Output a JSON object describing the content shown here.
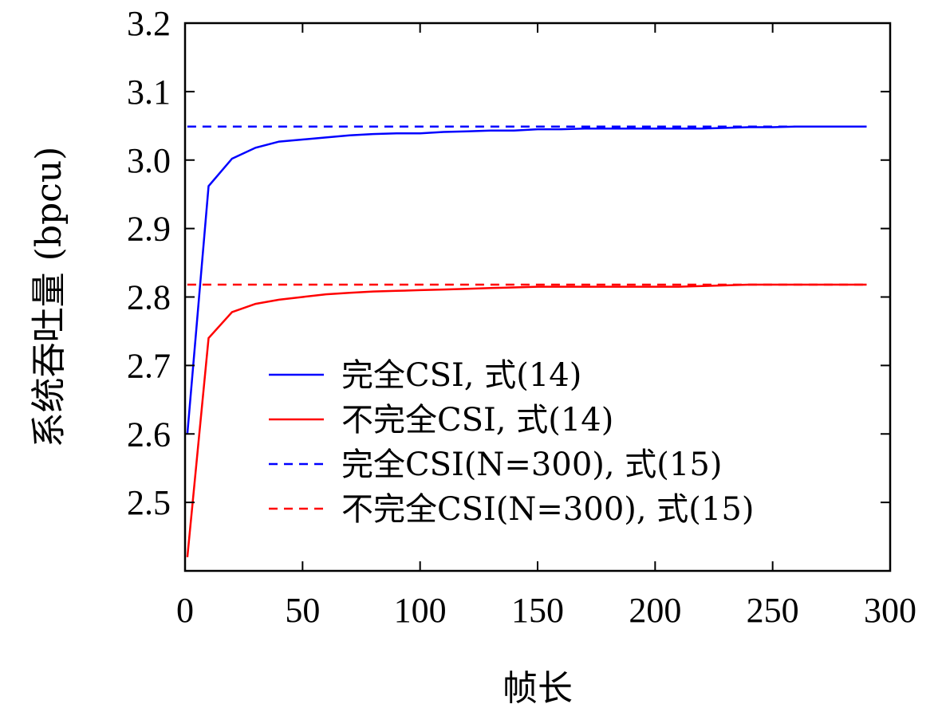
{
  "chart_data": {
    "type": "line",
    "xlabel": "帧长",
    "ylabel": "系统吞吐量 (bpcu)",
    "xlim": [
      0,
      300
    ],
    "ylim": [
      2.4,
      3.2
    ],
    "xticks": [
      0,
      50,
      100,
      150,
      200,
      250,
      300
    ],
    "yticks": [
      2.5,
      2.6,
      2.7,
      2.8,
      2.9,
      3.0,
      3.1,
      3.2
    ],
    "xtick_labels": [
      "0",
      "50",
      "100",
      "150",
      "200",
      "250",
      "300"
    ],
    "ytick_labels": [
      "2.5",
      "2.6",
      "2.7",
      "2.8",
      "2.9",
      "3.0",
      "3.1",
      "3.2"
    ],
    "grid": false,
    "legend_position": "bottom-right",
    "series": [
      {
        "name": "完全CSI, 式(14)",
        "color": "#0000ff",
        "style": "solid",
        "x": [
          1,
          10,
          20,
          30,
          40,
          50,
          60,
          70,
          80,
          90,
          100,
          110,
          120,
          130,
          140,
          150,
          160,
          170,
          180,
          190,
          200,
          210,
          220,
          230,
          240,
          250,
          260,
          270,
          280,
          290
        ],
        "y": [
          2.6,
          2.962,
          3.002,
          3.018,
          3.027,
          3.03,
          3.033,
          3.036,
          3.038,
          3.039,
          3.039,
          3.041,
          3.042,
          3.043,
          3.043,
          3.045,
          3.045,
          3.046,
          3.046,
          3.046,
          3.046,
          3.046,
          3.046,
          3.047,
          3.048,
          3.048,
          3.049,
          3.049,
          3.049,
          3.049
        ]
      },
      {
        "name": "不完全CSI, 式(14)",
        "color": "#ff0000",
        "style": "solid",
        "x": [
          1,
          10,
          20,
          30,
          40,
          50,
          60,
          70,
          80,
          90,
          100,
          110,
          120,
          130,
          140,
          150,
          160,
          170,
          180,
          190,
          200,
          210,
          220,
          230,
          240,
          250,
          260,
          270,
          280,
          290
        ],
        "y": [
          2.42,
          2.74,
          2.778,
          2.79,
          2.796,
          2.8,
          2.804,
          2.806,
          2.808,
          2.809,
          2.81,
          2.811,
          2.812,
          2.813,
          2.814,
          2.815,
          2.815,
          2.815,
          2.815,
          2.815,
          2.815,
          2.815,
          2.816,
          2.817,
          2.818,
          2.818,
          2.818,
          2.818,
          2.818,
          2.818
        ]
      },
      {
        "name": "完全CSI(N=300), 式(15)",
        "color": "#0000ff",
        "style": "dashed",
        "x": [
          1,
          290
        ],
        "y": [
          3.049,
          3.049
        ]
      },
      {
        "name": "不完全CSI(N=300), 式(15)",
        "color": "#ff0000",
        "style": "dashed",
        "x": [
          1,
          290
        ],
        "y": [
          2.818,
          2.818
        ]
      }
    ]
  }
}
